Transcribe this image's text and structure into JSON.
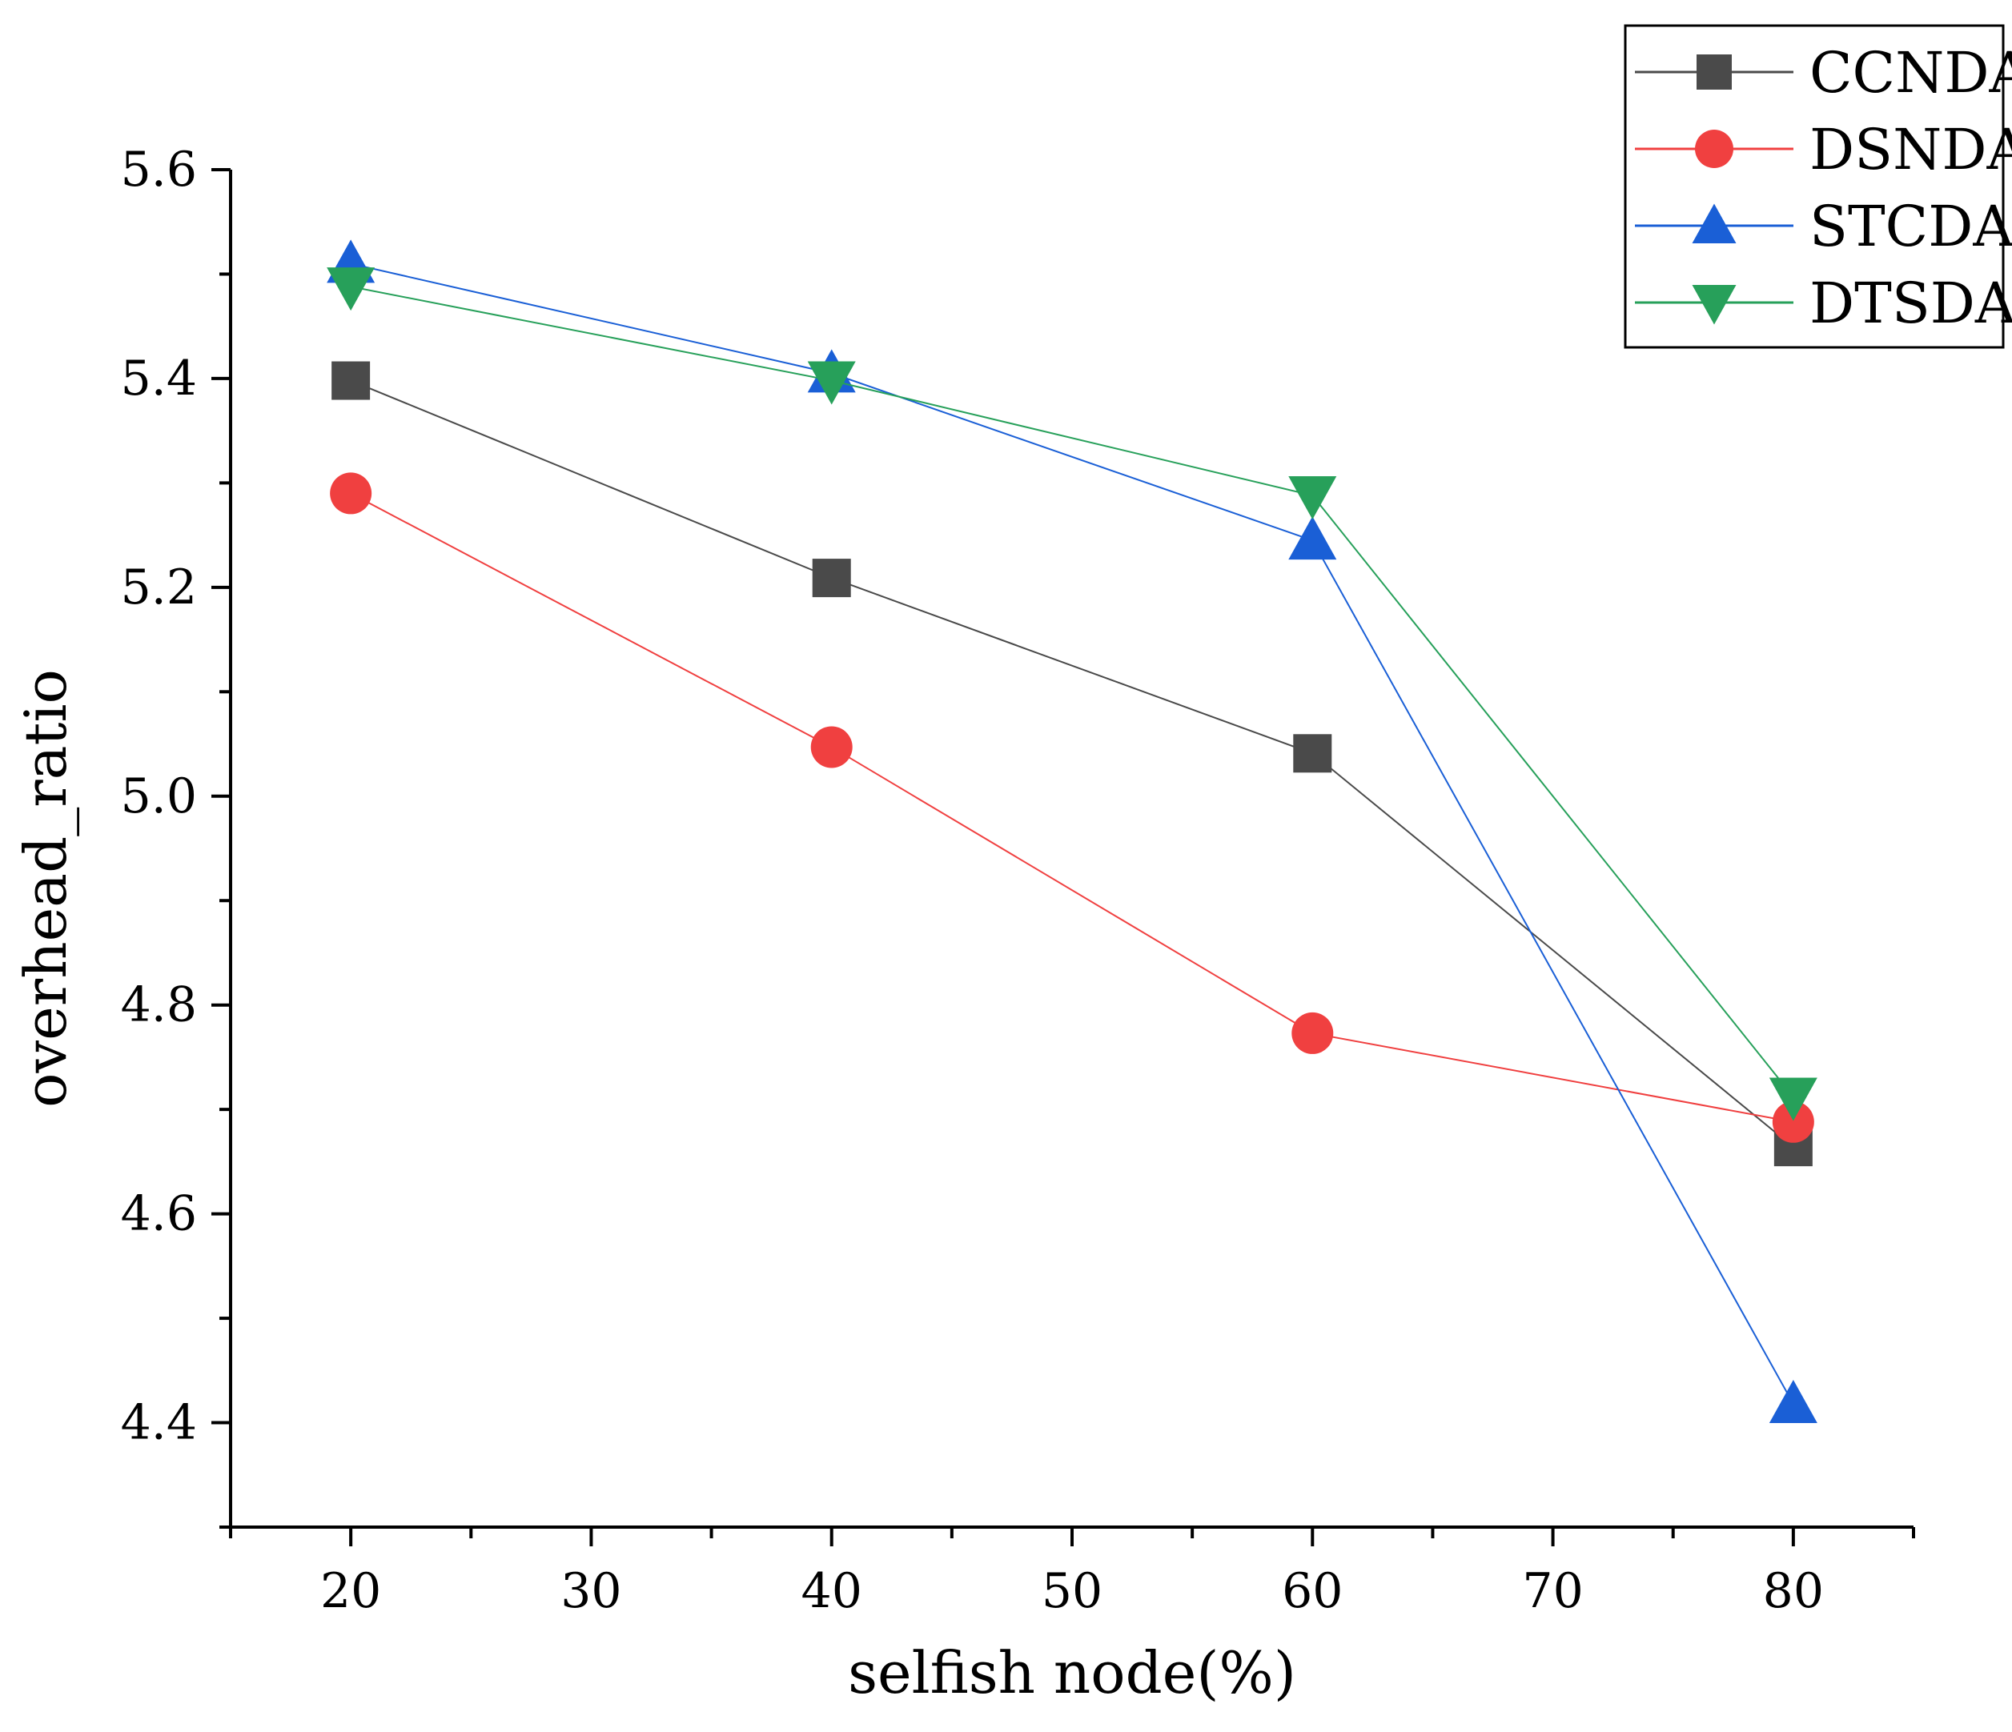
{
  "chart_data": {
    "type": "line",
    "title": "",
    "xlabel": "selfish node(%)",
    "ylabel": "overhead_ratio",
    "x": [
      20,
      40,
      60,
      80
    ],
    "xlim": [
      15,
      85
    ],
    "ylim": [
      4.3,
      5.6
    ],
    "xticks": [
      20,
      30,
      40,
      50,
      60,
      70,
      80
    ],
    "xtick_labels": [
      "20",
      "30",
      "40",
      "50",
      "60",
      "70",
      "80"
    ],
    "yticks": [
      4.4,
      4.6,
      4.8,
      5.0,
      5.2,
      5.4,
      5.6
    ],
    "ytick_labels": [
      "4.4",
      "4.6",
      "4.8",
      "5.0",
      "5.2",
      "5.4",
      "5.6"
    ],
    "grid": false,
    "legend_position": "top-right",
    "series": [
      {
        "name": "CCNDA",
        "marker": "square",
        "color": "#4a4a4a",
        "values": [
          5.398,
          5.209,
          5.041,
          4.664
        ]
      },
      {
        "name": "DSNDA",
        "marker": "circle",
        "color": "#f04040",
        "values": [
          5.29,
          5.047,
          4.773,
          4.688
        ]
      },
      {
        "name": "STCDA",
        "marker": "triangle-up",
        "color": "#1a5fd6",
        "values": [
          5.51,
          5.405,
          5.245,
          4.418
        ]
      },
      {
        "name": "DTSDA",
        "marker": "triangle-down",
        "color": "#27a05a",
        "values": [
          5.488,
          5.398,
          5.288,
          4.712
        ]
      }
    ]
  }
}
